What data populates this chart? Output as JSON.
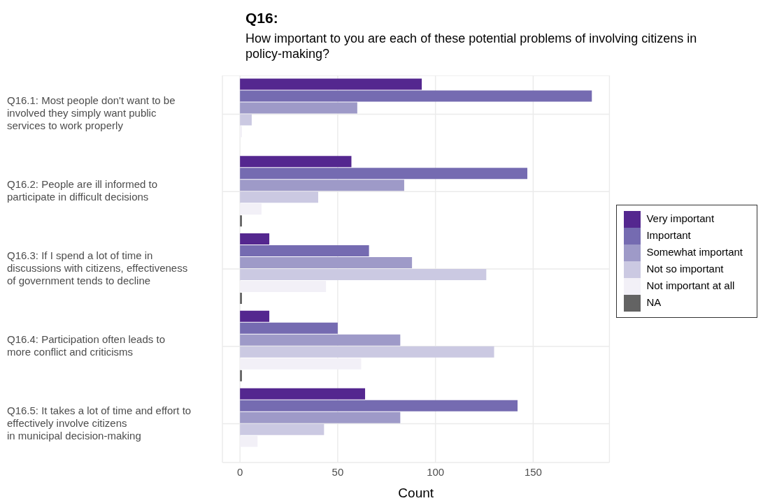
{
  "chart_data": {
    "type": "bar",
    "orientation": "horizontal",
    "title": "Q16:",
    "subtitle": "How important to you are each of these potential problems of involving citizens in policy-making?",
    "xlabel": "Count",
    "categories": [
      "Q16.1: Most people don't want to be\ninvolved they simply want public\nservices to work properly",
      "Q16.2: People are ill informed to\nparticipate in difficult decisions",
      "Q16.3: If I spend a lot of time in\ndiscussions with citizens, effectiveness\nof government tends to decline",
      "Q16.4: Participation often leads to\nmore conflict and criticisms",
      "Q16.5: It takes a lot of time and effort to\neffectively involve citizens\nin municipal decision-making"
    ],
    "series": [
      {
        "name": "Very important",
        "color": "#54278f",
        "values": [
          93,
          57,
          15,
          15,
          64
        ]
      },
      {
        "name": "Important",
        "color": "#756bb1",
        "values": [
          180,
          147,
          66,
          50,
          142
        ]
      },
      {
        "name": "Somewhat important",
        "color": "#9e9ac8",
        "values": [
          60,
          84,
          88,
          82,
          82
        ]
      },
      {
        "name": "Not so important",
        "color": "#cbc9e2",
        "values": [
          6,
          40,
          126,
          130,
          43
        ]
      },
      {
        "name": "Not important at all",
        "color": "#f2f0f7",
        "values": [
          1,
          11,
          44,
          62,
          9
        ]
      },
      {
        "name": "NA",
        "color": "#636363",
        "values": [
          null,
          1,
          1,
          1,
          null
        ]
      }
    ],
    "xlim": [
      -9,
      189
    ],
    "xticks": [
      0,
      50,
      100,
      150
    ],
    "grid": true,
    "legend": "right"
  }
}
